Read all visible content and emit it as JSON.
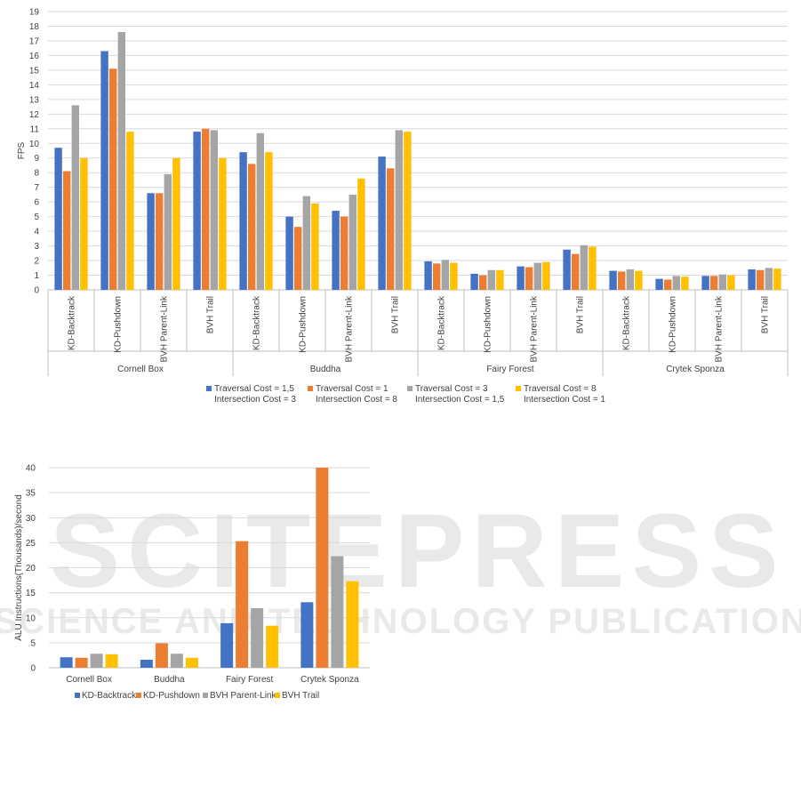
{
  "watermark": {
    "line1": "SCITEPRESS",
    "line2": "SCIENCE AND TECHNOLOGY PUBLICATIONS"
  },
  "colors": {
    "series1": "#4472C4",
    "series2": "#ED7D31",
    "series3": "#A5A5A5",
    "series4": "#FFC000",
    "grid": "#d9d9d9",
    "axis": "#bfbfbf"
  },
  "chart_data": [
    {
      "type": "bar",
      "ylabel": "FPS",
      "ylim": [
        0,
        19
      ],
      "yticks": [
        0,
        1,
        2,
        3,
        4,
        5,
        6,
        7,
        8,
        9,
        10,
        11,
        12,
        13,
        14,
        15,
        16,
        17,
        18,
        19
      ],
      "grid": true,
      "legend_position": "bottom",
      "groups": [
        "Cornell Box",
        "Buddha",
        "Fairy Forest",
        "Crytek Sponza"
      ],
      "subcategories": [
        "KD-Backtrack",
        "KD-Pushdown",
        "BVH Parent-Link",
        "BVH Trail"
      ],
      "series": [
        {
          "name": "Traversal Cost = 1,5\nIntersection Cost = 3",
          "values": [
            [
              9.7,
              16.3,
              6.6,
              10.8
            ],
            [
              9.4,
              5.0,
              5.4,
              9.1
            ],
            [
              1.95,
              1.1,
              1.6,
              2.75
            ],
            [
              1.3,
              0.75,
              0.95,
              1.4
            ]
          ]
        },
        {
          "name": "Traversal Cost = 1\nIntersection Cost = 8",
          "values": [
            [
              8.1,
              15.1,
              6.6,
              11.0
            ],
            [
              8.6,
              4.3,
              5.0,
              8.3
            ],
            [
              1.8,
              1.0,
              1.55,
              2.45
            ],
            [
              1.25,
              0.7,
              0.95,
              1.35
            ]
          ]
        },
        {
          "name": "Traversal Cost = 3\nIntersection Cost = 1,5",
          "values": [
            [
              12.6,
              17.6,
              7.9,
              10.9
            ],
            [
              10.7,
              6.4,
              6.5,
              10.9
            ],
            [
              2.05,
              1.35,
              1.85,
              3.05
            ],
            [
              1.4,
              0.95,
              1.05,
              1.5
            ]
          ]
        },
        {
          "name": "Traversal Cost = 8\nIntersection Cost = 1",
          "values": [
            [
              9.0,
              10.8,
              9.0,
              9.0
            ],
            [
              9.4,
              5.9,
              7.6,
              10.8
            ],
            [
              1.85,
              1.35,
              1.9,
              2.95
            ],
            [
              1.3,
              0.9,
              1.0,
              1.45
            ]
          ]
        }
      ]
    },
    {
      "type": "bar",
      "ylabel": "ALU Instructions(Thousands)/second",
      "ylim": [
        0,
        40
      ],
      "yticks": [
        0,
        5,
        10,
        15,
        20,
        25,
        30,
        35,
        40
      ],
      "grid": true,
      "legend_position": "bottom",
      "categories": [
        "Cornell Box",
        "Buddha",
        "Fairy Forest",
        "Crytek Sponza"
      ],
      "series": [
        {
          "name": "KD-Backtrack",
          "values": [
            2.1,
            1.6,
            8.9,
            13.1
          ]
        },
        {
          "name": "KD-Pushdown",
          "values": [
            2.0,
            4.9,
            25.3,
            40.0
          ]
        },
        {
          "name": "BVH Parent-Link",
          "values": [
            2.8,
            2.8,
            11.9,
            22.3
          ]
        },
        {
          "name": "BVH Trail",
          "values": [
            2.7,
            2.0,
            8.4,
            17.3
          ]
        }
      ]
    }
  ]
}
